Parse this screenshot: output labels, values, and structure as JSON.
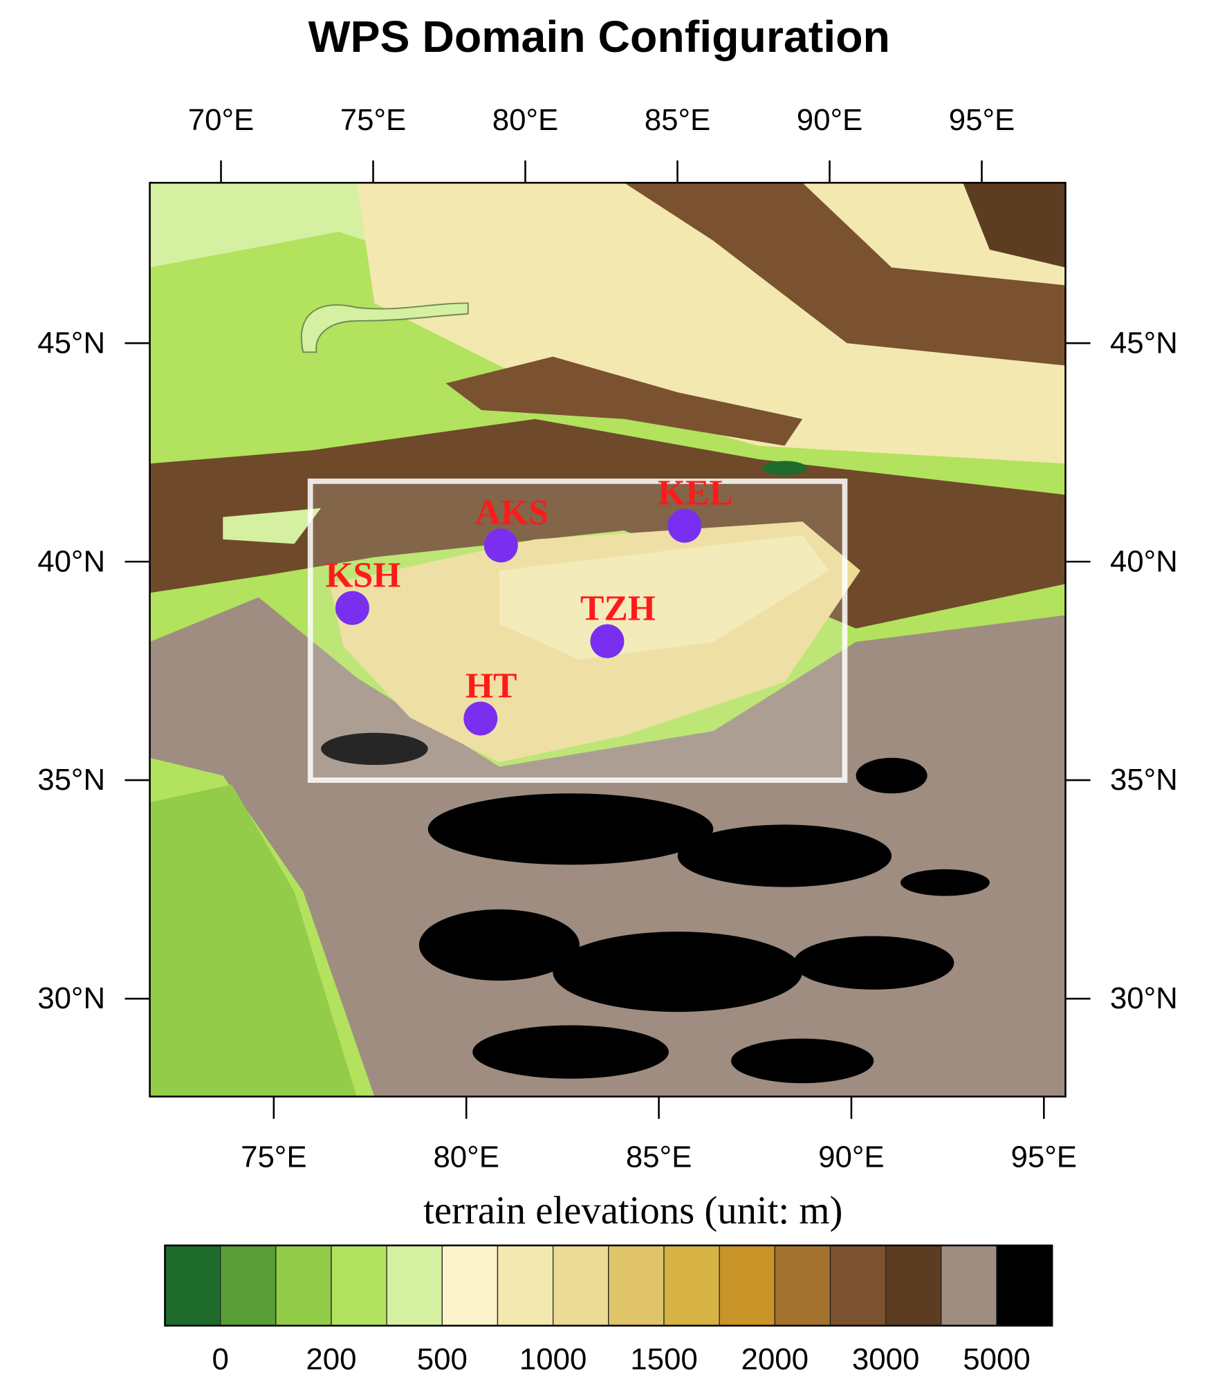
{
  "title": "WPS Domain Configuration",
  "map": {
    "lon_range": [
      71.78,
      95.56
    ],
    "lat_range": [
      27.76,
      48.67
    ],
    "bottom_ticks": [
      {
        "value": 75,
        "label": "75°E"
      },
      {
        "value": 80,
        "label": "80°E"
      },
      {
        "value": 85,
        "label": "85°E"
      },
      {
        "value": 90,
        "label": "90°E"
      },
      {
        "value": 95,
        "label": "95°E"
      }
    ],
    "top_lon_range": [
      67.66,
      97.75
    ],
    "top_ticks": [
      {
        "value": 70,
        "label": "70°E"
      },
      {
        "value": 75,
        "label": "75°E"
      },
      {
        "value": 80,
        "label": "80°E"
      },
      {
        "value": 85,
        "label": "85°E"
      },
      {
        "value": 90,
        "label": "90°E"
      },
      {
        "value": 95,
        "label": "95°E"
      }
    ],
    "lat_ticks": [
      {
        "value": 45,
        "label": "45°N"
      },
      {
        "value": 40,
        "label": "40°N"
      },
      {
        "value": 35,
        "label": "35°N"
      },
      {
        "value": 30,
        "label": "30°N"
      }
    ],
    "domain_box": {
      "lon": [
        75.95,
        89.83
      ],
      "lat": [
        35,
        41.84
      ]
    },
    "station_color": "#7a2ff0",
    "station_label_color": "#ff1a1a",
    "stations": [
      {
        "name": "KSH",
        "lon": 77.04,
        "lat": 38.94
      },
      {
        "name": "AKS",
        "lon": 80.9,
        "lat": 40.37
      },
      {
        "name": "KEL",
        "lon": 85.67,
        "lat": 40.82
      },
      {
        "name": "TZH",
        "lon": 83.66,
        "lat": 38.18
      },
      {
        "name": "HT",
        "lon": 80.37,
        "lat": 36.41
      }
    ]
  },
  "colorbar": {
    "title": "terrain elevations (unit: m)",
    "colors": [
      "#1e6b2c",
      "#5a9e38",
      "#93cc48",
      "#b2e25e",
      "#d4f0a0",
      "#faf3cc",
      "#f3e8b0",
      "#ebdb94",
      "#dfc46a",
      "#d7b244",
      "#c99428",
      "#a2722e",
      "#7a5230",
      "#5c3d22",
      "#9e8d80",
      "#000000"
    ],
    "labels": [
      0,
      200,
      500,
      1000,
      1500,
      2000,
      3000,
      5000
    ]
  }
}
